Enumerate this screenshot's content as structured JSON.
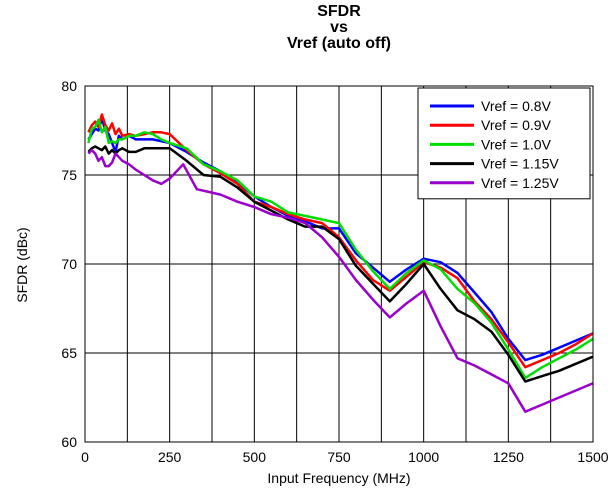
{
  "chart_data": {
    "type": "line",
    "title_lines": [
      "SFDR",
      "vs",
      "Vref (auto off)"
    ],
    "xlabel": "Input Frequency (MHz)",
    "ylabel": "SFDR (dBc)",
    "xlim": [
      0,
      1500
    ],
    "ylim": [
      60,
      80
    ],
    "xticks": [
      0,
      250,
      500,
      750,
      1000,
      1250,
      1500
    ],
    "yticks": [
      60,
      65,
      70,
      75,
      80
    ],
    "x_grid_step": 125,
    "y_grid_step": 5,
    "grid": true,
    "legend_position": "top-right",
    "series": [
      {
        "name": "Vref = 0.8V",
        "color": "#0000ff",
        "points": [
          [
            10,
            77.0
          ],
          [
            20,
            77.3
          ],
          [
            30,
            77.6
          ],
          [
            40,
            77.5
          ],
          [
            50,
            78.2
          ],
          [
            60,
            77.5
          ],
          [
            70,
            77.3
          ],
          [
            80,
            76.8
          ],
          [
            90,
            76.3
          ],
          [
            100,
            77.2
          ],
          [
            110,
            77.0
          ],
          [
            130,
            77.2
          ],
          [
            150,
            77.0
          ],
          [
            175,
            77.0
          ],
          [
            200,
            77.0
          ],
          [
            225,
            76.9
          ],
          [
            250,
            76.8
          ],
          [
            300,
            76.3
          ],
          [
            350,
            75.7
          ],
          [
            400,
            75.2
          ],
          [
            450,
            74.6
          ],
          [
            500,
            73.8
          ],
          [
            550,
            73.2
          ],
          [
            600,
            72.7
          ],
          [
            650,
            72.4
          ],
          [
            700,
            72.0
          ],
          [
            750,
            72.0
          ],
          [
            800,
            70.6
          ],
          [
            850,
            69.8
          ],
          [
            900,
            69.0
          ],
          [
            950,
            69.7
          ],
          [
            1000,
            70.3
          ],
          [
            1050,
            70.1
          ],
          [
            1100,
            69.5
          ],
          [
            1150,
            68.4
          ],
          [
            1200,
            67.3
          ],
          [
            1250,
            65.8
          ],
          [
            1300,
            64.6
          ],
          [
            1350,
            64.9
          ],
          [
            1400,
            65.3
          ],
          [
            1450,
            65.7
          ],
          [
            1500,
            66.1
          ]
        ]
      },
      {
        "name": "Vref = 0.9V",
        "color": "#ff0000",
        "points": [
          [
            10,
            77.4
          ],
          [
            20,
            77.8
          ],
          [
            30,
            78.0
          ],
          [
            40,
            77.7
          ],
          [
            50,
            78.4
          ],
          [
            60,
            77.8
          ],
          [
            70,
            77.5
          ],
          [
            80,
            77.9
          ],
          [
            90,
            77.3
          ],
          [
            100,
            77.6
          ],
          [
            110,
            77.2
          ],
          [
            130,
            77.3
          ],
          [
            150,
            77.2
          ],
          [
            175,
            77.3
          ],
          [
            200,
            77.4
          ],
          [
            225,
            77.4
          ],
          [
            250,
            77.3
          ],
          [
            300,
            76.4
          ],
          [
            350,
            75.6
          ],
          [
            400,
            75.1
          ],
          [
            450,
            74.5
          ],
          [
            500,
            73.5
          ],
          [
            550,
            73.2
          ],
          [
            600,
            72.8
          ],
          [
            650,
            72.5
          ],
          [
            700,
            72.3
          ],
          [
            750,
            71.5
          ],
          [
            800,
            70.2
          ],
          [
            850,
            69.1
          ],
          [
            900,
            68.5
          ],
          [
            950,
            69.3
          ],
          [
            1000,
            70.1
          ],
          [
            1050,
            69.8
          ],
          [
            1100,
            69.2
          ],
          [
            1150,
            67.9
          ],
          [
            1200,
            66.9
          ],
          [
            1250,
            65.6
          ],
          [
            1300,
            64.2
          ],
          [
            1350,
            64.6
          ],
          [
            1400,
            65.0
          ],
          [
            1450,
            65.5
          ],
          [
            1500,
            66.1
          ]
        ]
      },
      {
        "name": "Vref = 1.0V",
        "color": "#00dd00",
        "points": [
          [
            10,
            76.8
          ],
          [
            20,
            77.6
          ],
          [
            30,
            77.7
          ],
          [
            40,
            78.1
          ],
          [
            50,
            77.4
          ],
          [
            60,
            77.7
          ],
          [
            70,
            76.8
          ],
          [
            80,
            76.9
          ],
          [
            90,
            76.8
          ],
          [
            100,
            77.0
          ],
          [
            110,
            77.0
          ],
          [
            130,
            77.2
          ],
          [
            150,
            77.2
          ],
          [
            175,
            77.4
          ],
          [
            200,
            77.3
          ],
          [
            225,
            77.0
          ],
          [
            250,
            76.8
          ],
          [
            300,
            76.5
          ],
          [
            350,
            75.6
          ],
          [
            400,
            75.2
          ],
          [
            450,
            74.7
          ],
          [
            500,
            73.8
          ],
          [
            550,
            73.5
          ],
          [
            600,
            72.9
          ],
          [
            650,
            72.7
          ],
          [
            700,
            72.5
          ],
          [
            750,
            72.3
          ],
          [
            800,
            70.8
          ],
          [
            850,
            69.6
          ],
          [
            900,
            68.6
          ],
          [
            950,
            69.5
          ],
          [
            1000,
            70.2
          ],
          [
            1050,
            69.7
          ],
          [
            1100,
            68.6
          ],
          [
            1150,
            67.8
          ],
          [
            1200,
            66.7
          ],
          [
            1250,
            65.2
          ],
          [
            1300,
            63.6
          ],
          [
            1350,
            64.2
          ],
          [
            1400,
            64.7
          ],
          [
            1450,
            65.2
          ],
          [
            1500,
            65.8
          ]
        ]
      },
      {
        "name": "Vref = 1.15V",
        "color": "#000000",
        "points": [
          [
            10,
            76.3
          ],
          [
            20,
            76.5
          ],
          [
            30,
            76.6
          ],
          [
            40,
            76.5
          ],
          [
            50,
            76.4
          ],
          [
            60,
            76.6
          ],
          [
            70,
            76.2
          ],
          [
            80,
            76.4
          ],
          [
            90,
            76.2
          ],
          [
            100,
            76.4
          ],
          [
            110,
            76.5
          ],
          [
            130,
            76.3
          ],
          [
            150,
            76.3
          ],
          [
            175,
            76.5
          ],
          [
            200,
            76.5
          ],
          [
            225,
            76.5
          ],
          [
            250,
            76.5
          ],
          [
            300,
            75.8
          ],
          [
            350,
            75.0
          ],
          [
            400,
            74.9
          ],
          [
            450,
            74.3
          ],
          [
            500,
            73.5
          ],
          [
            550,
            73.0
          ],
          [
            600,
            72.5
          ],
          [
            650,
            72.1
          ],
          [
            700,
            72.1
          ],
          [
            750,
            71.4
          ],
          [
            800,
            69.9
          ],
          [
            850,
            68.9
          ],
          [
            900,
            67.9
          ],
          [
            950,
            68.9
          ],
          [
            1000,
            70.0
          ],
          [
            1050,
            68.6
          ],
          [
            1100,
            67.4
          ],
          [
            1150,
            66.9
          ],
          [
            1200,
            66.2
          ],
          [
            1250,
            64.9
          ],
          [
            1300,
            63.4
          ],
          [
            1350,
            63.7
          ],
          [
            1400,
            64.0
          ],
          [
            1450,
            64.4
          ],
          [
            1500,
            64.8
          ]
        ]
      },
      {
        "name": "Vref = 1.25V",
        "color": "#9900cc",
        "points": [
          [
            10,
            76.2
          ],
          [
            20,
            76.4
          ],
          [
            30,
            76.2
          ],
          [
            40,
            75.8
          ],
          [
            50,
            76.0
          ],
          [
            60,
            75.5
          ],
          [
            70,
            75.5
          ],
          [
            80,
            75.7
          ],
          [
            90,
            76.2
          ],
          [
            100,
            76.0
          ],
          [
            110,
            75.8
          ],
          [
            130,
            75.6
          ],
          [
            150,
            75.3
          ],
          [
            175,
            75.0
          ],
          [
            200,
            74.7
          ],
          [
            225,
            74.5
          ],
          [
            250,
            74.8
          ],
          [
            290,
            75.6
          ],
          [
            330,
            74.2
          ],
          [
            400,
            73.9
          ],
          [
            450,
            73.5
          ],
          [
            500,
            73.2
          ],
          [
            550,
            72.8
          ],
          [
            600,
            72.6
          ],
          [
            650,
            72.3
          ],
          [
            700,
            71.5
          ],
          [
            750,
            70.4
          ],
          [
            800,
            69.1
          ],
          [
            850,
            68.0
          ],
          [
            900,
            67.0
          ],
          [
            950,
            67.8
          ],
          [
            1000,
            68.5
          ],
          [
            1050,
            66.5
          ],
          [
            1100,
            64.7
          ],
          [
            1150,
            64.3
          ],
          [
            1200,
            63.8
          ],
          [
            1250,
            63.3
          ],
          [
            1300,
            61.7
          ],
          [
            1350,
            62.1
          ],
          [
            1400,
            62.5
          ],
          [
            1450,
            62.9
          ],
          [
            1500,
            63.3
          ]
        ]
      }
    ]
  }
}
